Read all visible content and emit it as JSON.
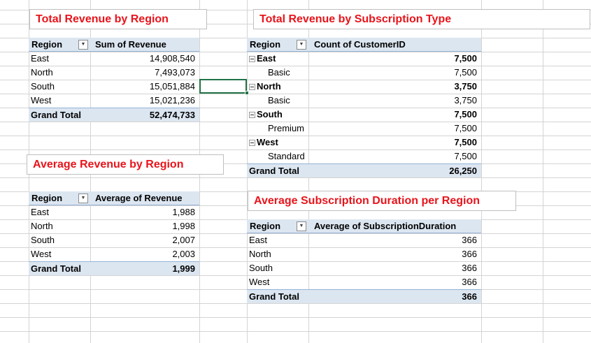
{
  "pivot_revenue": {
    "title": "Total Revenue by Region",
    "row_header": "Region",
    "value_header": "Sum of Revenue",
    "rows": [
      {
        "label": "East",
        "value": "14,908,540"
      },
      {
        "label": "North",
        "value": "7,493,073"
      },
      {
        "label": "South",
        "value": "15,051,884"
      },
      {
        "label": "West",
        "value": "15,021,236"
      }
    ],
    "total_label": "Grand Total",
    "total_value": "52,474,733"
  },
  "pivot_avg_revenue": {
    "title": "Average Revenue by Region",
    "row_header": "Region",
    "value_header": "Average of Revenue",
    "rows": [
      {
        "label": "East",
        "value": "1,988"
      },
      {
        "label": "North",
        "value": "1,998"
      },
      {
        "label": "South",
        "value": "2,007"
      },
      {
        "label": "West",
        "value": "2,003"
      }
    ],
    "total_label": "Grand Total",
    "total_value": "1,999"
  },
  "pivot_subscription": {
    "title": "Total Revenue by Subscription Type",
    "row_header": "Region",
    "value_header": "Count of CustomerID",
    "groups": [
      {
        "label": "East",
        "value": "7,500",
        "child_label": "Basic",
        "child_value": "7,500"
      },
      {
        "label": "North",
        "value": "3,750",
        "child_label": "Basic",
        "child_value": "3,750"
      },
      {
        "label": "South",
        "value": "7,500",
        "child_label": "Premium",
        "child_value": "7,500"
      },
      {
        "label": "West",
        "value": "7,500",
        "child_label": "Standard",
        "child_value": "7,500"
      }
    ],
    "total_label": "Grand Total",
    "total_value": "26,250"
  },
  "pivot_duration": {
    "title": "Average Subscription Duration per Region",
    "row_header": "Region",
    "value_header": "Average of SubscriptionDuration",
    "rows": [
      {
        "label": "East",
        "value": "366"
      },
      {
        "label": "North",
        "value": "366"
      },
      {
        "label": "South",
        "value": "366"
      },
      {
        "label": "West",
        "value": "366"
      }
    ],
    "total_label": "Grand Total",
    "total_value": "366"
  },
  "colors": {
    "title_text": "#e8141b",
    "pivot_header_fill": "#dce6f1",
    "gridline": "#d4d4d4",
    "selection_border": "#217346"
  },
  "icons": {
    "filter_dropdown": "chevron-down-icon",
    "collapse_toggle": "minus-box-icon"
  }
}
